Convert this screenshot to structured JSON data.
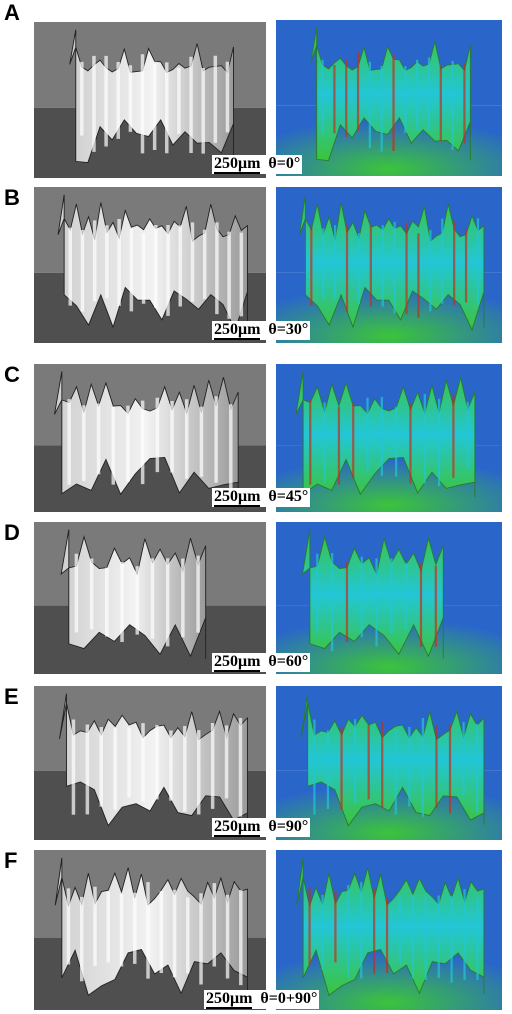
{
  "panels": [
    {
      "label": "A",
      "scale": "250μm",
      "angle": "θ=0°"
    },
    {
      "label": "B",
      "scale": "250μm",
      "angle": "θ=30°"
    },
    {
      "label": "C",
      "scale": "250μm",
      "angle": "θ=45°"
    },
    {
      "label": "D",
      "scale": "250μm",
      "angle": "θ=60°"
    },
    {
      "label": "E",
      "scale": "250μm",
      "angle": "θ=90°"
    },
    {
      "label": "F",
      "scale": "250μm",
      "angle": "θ=0+90°"
    }
  ],
  "colors": {
    "gray_light": "#7a7a7a",
    "gray_dark": "#4f4f4f",
    "blue_dark": "#1d3f8f",
    "blue": "#2a66c9",
    "cyan": "#22c6d6",
    "green": "#3cc43a",
    "red": "#c4301c"
  }
}
